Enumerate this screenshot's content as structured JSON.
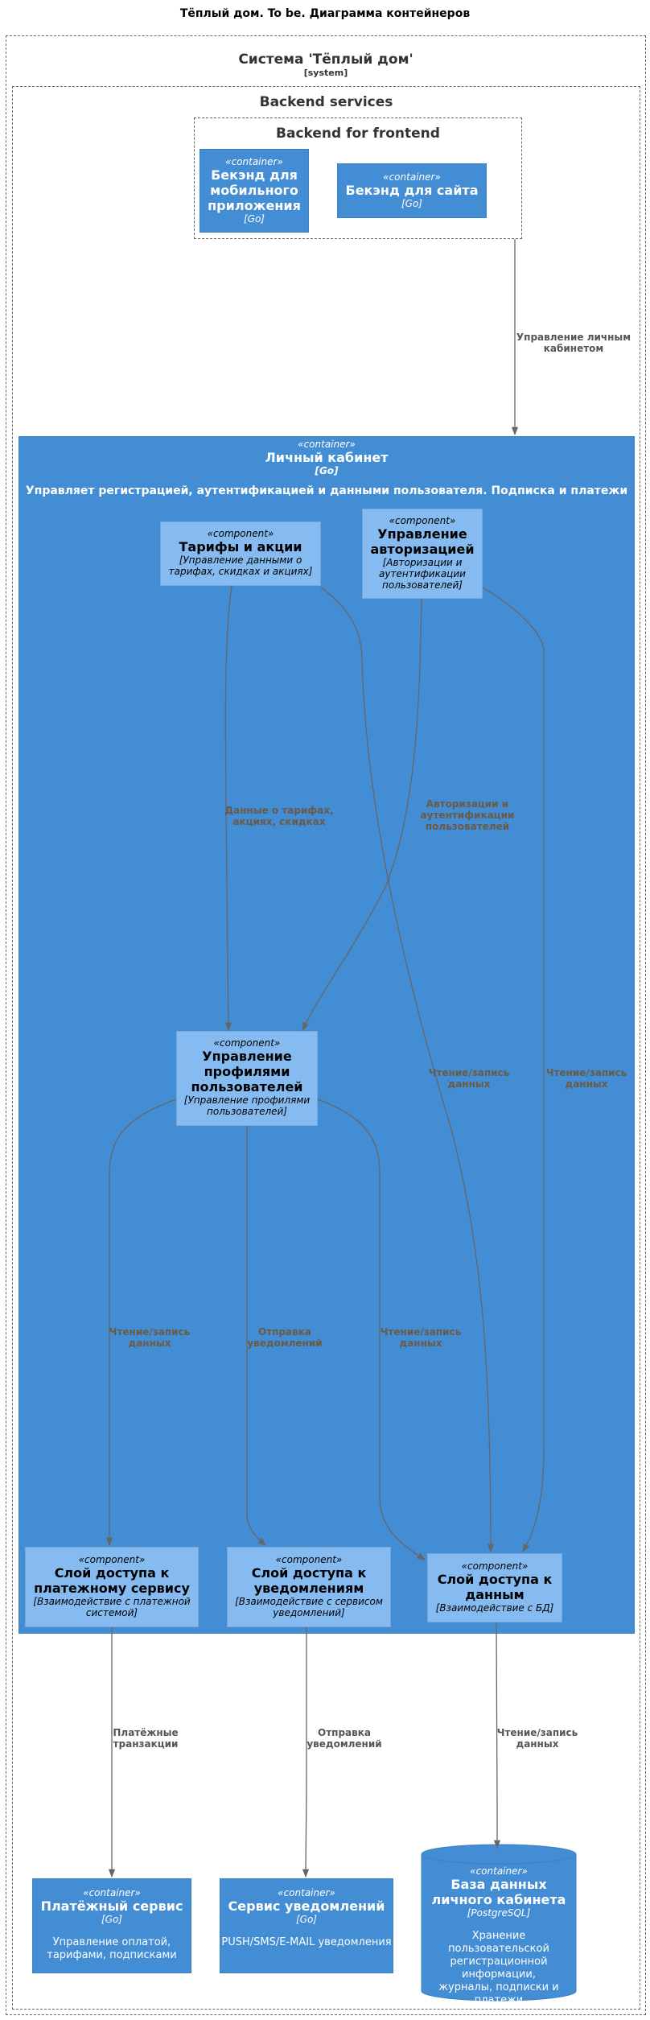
{
  "title": "Тёплый дом. To be. Диаграмма контейнеров",
  "system": {
    "name": "Система 'Тёплый дом'",
    "type": "[system]"
  },
  "backend_services": {
    "name": "Backend services"
  },
  "bff": {
    "name": "Backend for frontend",
    "mobile": {
      "stereotype": "«container»",
      "name": "Бекэнд для мобильного приложения",
      "tech": "[Go]"
    },
    "site": {
      "stereotype": "«container»",
      "name": "Бекэнд для сайта",
      "tech": "[Go]"
    }
  },
  "account": {
    "stereotype": "«container»",
    "name": "Личный кабинет",
    "tech": "[Go]",
    "description": "Управляет регистрацией, аутентификацией и данными пользователя. Подписка и платежи"
  },
  "components": {
    "tariffs": {
      "stereotype": "«component»",
      "name": "Тарифы и акции",
      "tech": "[Управление данными о тарифах, скидках и акциях]"
    },
    "auth": {
      "stereotype": "«component»",
      "name": "Управление авторизацией",
      "tech": "[Авторизации и аутентификации пользователей]"
    },
    "profiles": {
      "stereotype": "«component»",
      "name": "Управление профилями пользователей",
      "tech": "[Управление профилями пользователей]"
    },
    "payment_layer": {
      "stereotype": "«component»",
      "name": "Слой доступа к платежному сервису",
      "tech": "[Взаимодействие с платежной системой]"
    },
    "notify_layer": {
      "stereotype": "«component»",
      "name": "Слой доступа к уведомлениям",
      "tech": "[Взаимодействие с сервисом уведомлений]"
    },
    "data_layer": {
      "stereotype": "«component»",
      "name": "Слой доступа к данным",
      "tech": "[Взаимодействие с БД]"
    }
  },
  "externals": {
    "payment": {
      "stereotype": "«container»",
      "name": "Платёжный сервис",
      "tech": "[Go]",
      "description": "Управление оплатой, тарифами, подписками"
    },
    "notify": {
      "stereotype": "«container»",
      "name": "Сервис уведомлений",
      "tech": "[Go]",
      "description": "PUSH/SMS/E-MAIL уведомления"
    },
    "db": {
      "stereotype": "«container»",
      "name": "База данных личного кабинета",
      "tech": "[PostgreSQL]",
      "description": "Хранение пользовательской регистрационной информации, журналы, подписки и платежи"
    }
  },
  "relations": {
    "bff_account": "Управление личным кабинетом",
    "tariffs_profiles": "Данные о тарифах, акциях, скидках",
    "auth_profiles": "Авторизации и аутентификации пользователей",
    "tariffs_data": "Чтение/запись данных",
    "auth_data": "Чтение/запись данных",
    "profiles_payment": "Чтение/запись данных",
    "profiles_notify": "Отправка уведомлений",
    "profiles_data": "Чтение/запись данных",
    "payment_ext": "Платёжные транзакции",
    "notify_ext": "Отправка уведомлений",
    "data_db": "Чтение/запись данных"
  },
  "colors": {
    "container": "#438dd5",
    "component": "#85bbf0",
    "arrow": "#666666"
  }
}
